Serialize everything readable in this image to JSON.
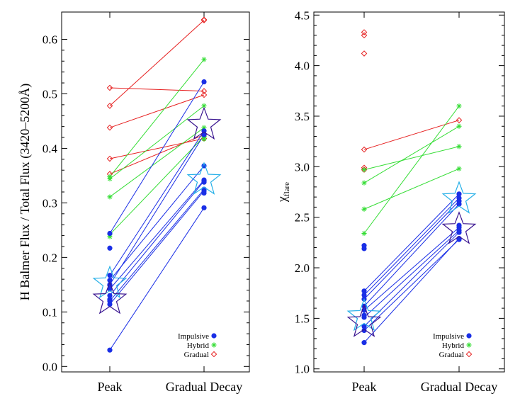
{
  "colors": {
    "impulsive": "#1a2fe6",
    "hybrid": "#33dd33",
    "gradual": "#e62020",
    "star_light": "#27b0e8",
    "star_dark": "#3a1590"
  },
  "legend": {
    "impulsive": "Impulsive",
    "hybrid": "Hybrid",
    "gradual": "Gradual"
  },
  "chart_data": [
    {
      "type": "scatter",
      "title": "",
      "ylabel": "H Balmer Flux / Total Flux (3420–5200Å)",
      "categories": [
        "Peak",
        "Gradual Decay"
      ],
      "ylim": [
        -0.01,
        0.65
      ],
      "yticks": [
        0.0,
        0.1,
        0.2,
        0.3,
        0.4,
        0.5,
        0.6
      ],
      "ytick_labels": [
        "0.0",
        "0.1",
        "0.2",
        "0.3",
        "0.4",
        "0.5",
        "0.6"
      ],
      "series": [
        {
          "name": "Gradual",
          "pairs": [
            [
              0.511,
              0.505
            ],
            [
              0.478,
              0.635
            ],
            [
              0.438,
              0.498
            ],
            [
              0.381,
              0.418
            ],
            [
              0.353,
              0.425
            ]
          ],
          "peak_only": [],
          "decay_only": [
            0.636
          ]
        },
        {
          "name": "Hybrid",
          "pairs": [
            [
              0.348,
              0.563
            ],
            [
              0.344,
              0.478
            ],
            [
              0.311,
              0.438
            ],
            [
              0.242,
              0.422
            ]
          ],
          "peak_only": [
            0.238
          ],
          "decay_only": [
            0.417,
            0.419
          ]
        },
        {
          "name": "Impulsive",
          "pairs": [
            [
              0.244,
              0.522
            ],
            [
              0.167,
              0.432
            ],
            [
              0.158,
              0.368
            ],
            [
              0.15,
              0.425
            ],
            [
              0.142,
              0.342
            ],
            [
              0.13,
              0.34
            ],
            [
              0.12,
              0.325
            ],
            [
              0.114,
              0.322
            ],
            [
              0.03,
              0.291
            ]
          ],
          "peak_only": [
            0.217,
            0.149,
            0.123
          ],
          "decay_only": [
            0.318,
            0.338,
            0.426
          ]
        }
      ],
      "stars": [
        {
          "name": "mean-light",
          "peak": 0.152,
          "decay": 0.342
        },
        {
          "name": "mean-dark",
          "peak": 0.123,
          "decay": 0.443
        }
      ]
    },
    {
      "type": "scatter",
      "title": "",
      "ylabel": "χflare",
      "ylabel_main": "χ",
      "ylabel_sub": "flare",
      "categories": [
        "Peak",
        "Gradual Decay"
      ],
      "ylim": [
        0.97,
        4.53
      ],
      "yticks": [
        1.0,
        1.5,
        2.0,
        2.5,
        3.0,
        3.5,
        4.0,
        4.5
      ],
      "ytick_labels": [
        "1.0",
        "1.5",
        "2.0",
        "2.5",
        "3.0",
        "3.5",
        "4.0",
        "4.5"
      ],
      "series": [
        {
          "name": "Gradual",
          "pairs": [
            [
              3.17,
              3.46
            ]
          ],
          "peak_only": [
            4.33,
            4.3,
            4.12,
            2.99,
            2.97
          ],
          "decay_only": []
        },
        {
          "name": "Hybrid",
          "pairs": [
            [
              2.97,
              3.2
            ],
            [
              2.84,
              3.4
            ],
            [
              2.58,
              2.98
            ],
            [
              2.34,
              3.6
            ]
          ],
          "peak_only": [],
          "decay_only": []
        },
        {
          "name": "Impulsive",
          "pairs": [
            [
              1.77,
              2.73
            ],
            [
              1.73,
              2.69
            ],
            [
              1.69,
              2.66
            ],
            [
              1.62,
              2.63
            ],
            [
              1.58,
              2.4
            ],
            [
              1.51,
              2.37
            ],
            [
              1.42,
              2.35
            ],
            [
              1.38,
              2.28
            ],
            [
              1.26,
              2.29
            ]
          ],
          "peak_only": [
            2.22,
            2.19,
            1.53
          ],
          "decay_only": [
            2.42
          ]
        }
      ],
      "stars": [
        {
          "name": "mean-light",
          "peak": 1.52,
          "decay": 2.68
        },
        {
          "name": "mean-dark",
          "peak": 1.46,
          "decay": 2.38
        }
      ]
    }
  ]
}
